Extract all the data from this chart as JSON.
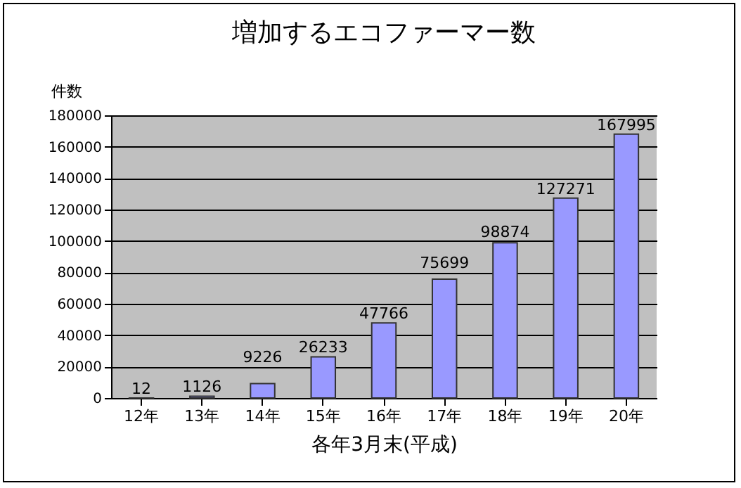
{
  "chart_data": {
    "type": "bar",
    "title": "増加するエコファーマー数",
    "xlabel": "各年3月末(平成)",
    "ylabel": "件数",
    "categories": [
      "12年",
      "13年",
      "14年",
      "15年",
      "16年",
      "17年",
      "18年",
      "19年",
      "20年"
    ],
    "values": [
      12,
      1126,
      9226,
      26233,
      47766,
      75699,
      98874,
      127271,
      167995
    ],
    "color": "#9999ff",
    "ylim": [
      0,
      180000
    ],
    "yticks": [
      0,
      20000,
      40000,
      60000,
      80000,
      100000,
      120000,
      140000,
      160000,
      180000
    ],
    "grid": "y",
    "data_labels": true
  }
}
